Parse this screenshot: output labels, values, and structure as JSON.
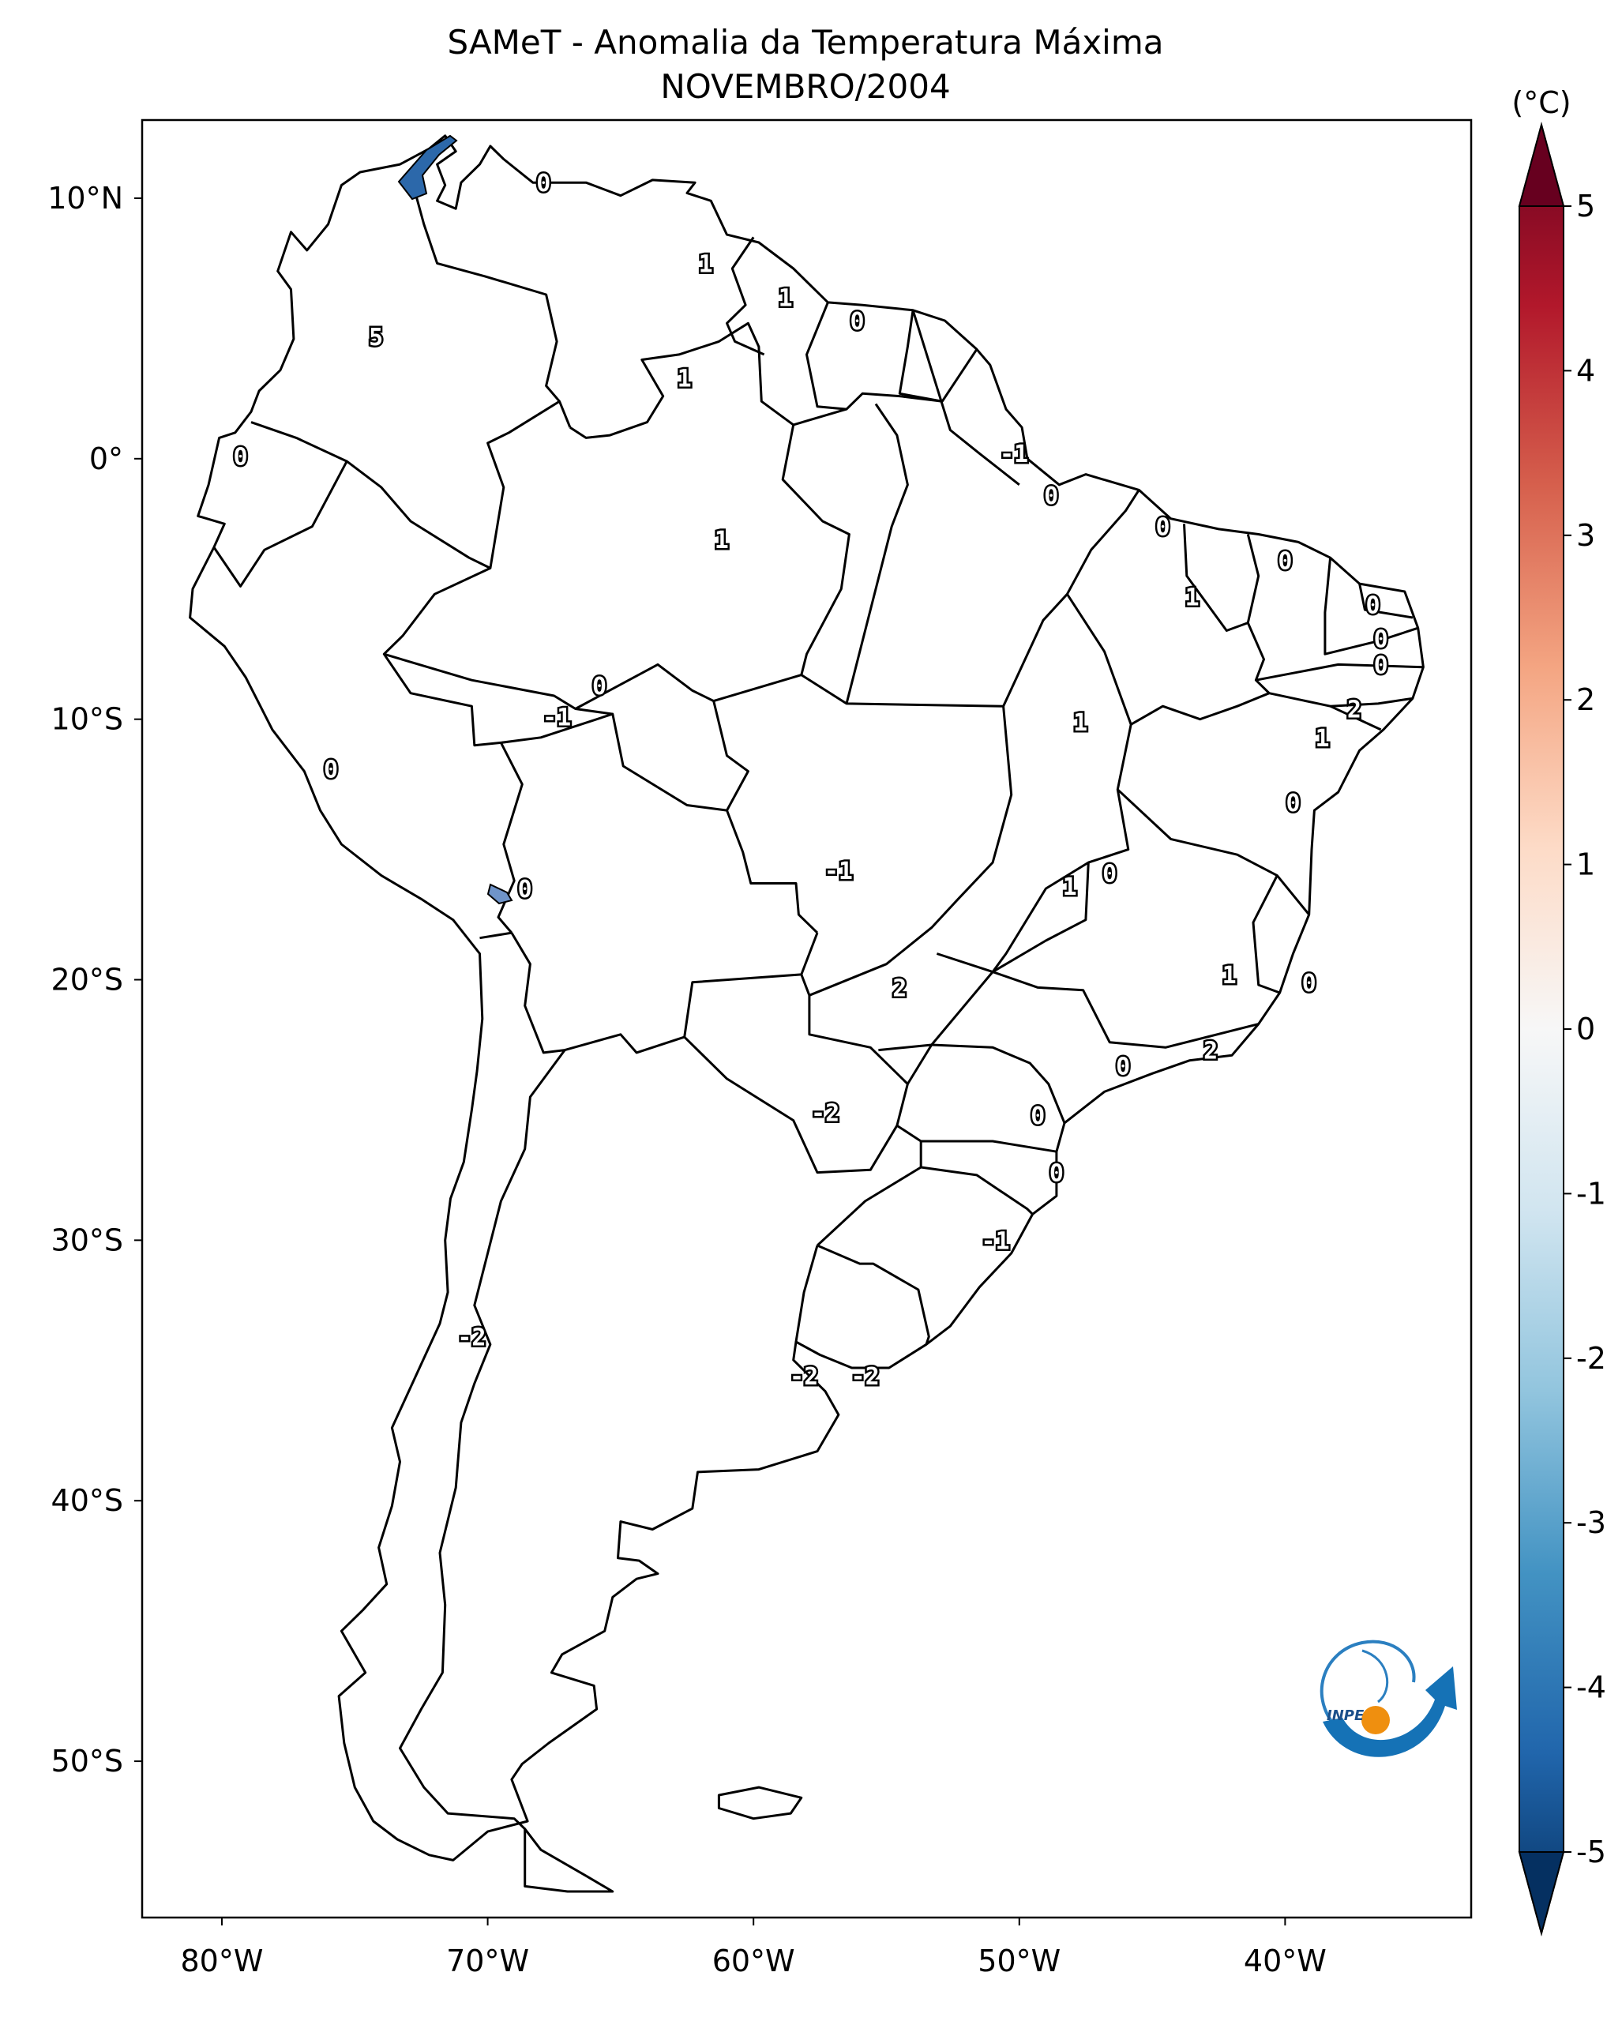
{
  "title": {
    "line1": "SAMeT - Anomalia da Temperatura Máxima",
    "line2": "NOVEMBRO/2004"
  },
  "axes": {
    "lon_ticks": [
      "80°W",
      "70°W",
      "60°W",
      "50°W",
      "40°W"
    ],
    "lat_ticks": [
      "10°N",
      "0°",
      "10°S",
      "20°S",
      "30°S",
      "40°S",
      "50°S"
    ],
    "lon_range": [
      -83,
      -33
    ],
    "lat_range": [
      -56,
      13
    ]
  },
  "colorbar": {
    "unit": "(°C)",
    "ticks": [
      "5",
      "4",
      "3",
      "2",
      "1",
      "0",
      "-1",
      "-2",
      "-3",
      "-4",
      "-5"
    ],
    "range": [
      -5,
      5
    ],
    "colormap": "RdBu_r",
    "colors": {
      "max": "#67001f",
      "hot": "#d6604d",
      "warm": "#f4a582",
      "neutral": "#f7f7f7",
      "cool": "#92c5de",
      "cold": "#2166ac",
      "min": "#053061"
    }
  },
  "contour_labels": [
    {
      "text": "0",
      "lon": -67.9,
      "lat": 10.6
    },
    {
      "text": "5",
      "lon": -74.2,
      "lat": 4.7
    },
    {
      "text": "1",
      "lon": -61.8,
      "lat": 7.5
    },
    {
      "text": "1",
      "lon": -58.8,
      "lat": 6.2
    },
    {
      "text": "0",
      "lon": -56.1,
      "lat": 5.3
    },
    {
      "text": "1",
      "lon": -62.6,
      "lat": 3.1
    },
    {
      "text": "-1",
      "lon": -50.2,
      "lat": 0.2
    },
    {
      "text": "0",
      "lon": -48.8,
      "lat": -1.4
    },
    {
      "text": "0",
      "lon": -44.6,
      "lat": -2.6
    },
    {
      "text": "0",
      "lon": -40.0,
      "lat": -3.9
    },
    {
      "text": "0",
      "lon": -79.3,
      "lat": 0.1
    },
    {
      "text": "1",
      "lon": -61.2,
      "lat": -3.1
    },
    {
      "text": "1",
      "lon": -43.5,
      "lat": -5.3
    },
    {
      "text": "0",
      "lon": -36.7,
      "lat": -5.6
    },
    {
      "text": "0",
      "lon": -36.4,
      "lat": -6.9
    },
    {
      "text": "0",
      "lon": -36.4,
      "lat": -7.9
    },
    {
      "text": "2",
      "lon": -37.4,
      "lat": -9.6
    },
    {
      "text": "1",
      "lon": -38.6,
      "lat": -10.7
    },
    {
      "text": "0",
      "lon": -65.8,
      "lat": -8.7
    },
    {
      "text": "-1",
      "lon": -67.4,
      "lat": -9.9
    },
    {
      "text": "1",
      "lon": -47.7,
      "lat": -10.1
    },
    {
      "text": "0",
      "lon": -75.9,
      "lat": -11.9
    },
    {
      "text": "0",
      "lon": -39.7,
      "lat": -13.2
    },
    {
      "text": "-1",
      "lon": -56.8,
      "lat": -15.8
    },
    {
      "text": "0",
      "lon": -46.6,
      "lat": -15.9
    },
    {
      "text": "1",
      "lon": -48.1,
      "lat": -16.4
    },
    {
      "text": "0",
      "lon": -68.6,
      "lat": -16.5
    },
    {
      "text": "1",
      "lon": -42.1,
      "lat": -19.8
    },
    {
      "text": "0",
      "lon": -39.1,
      "lat": -20.1
    },
    {
      "text": "2",
      "lon": -54.5,
      "lat": -20.3
    },
    {
      "text": "2",
      "lon": -42.8,
      "lat": -22.7
    },
    {
      "text": "0",
      "lon": -46.1,
      "lat": -23.3
    },
    {
      "text": "-2",
      "lon": -57.3,
      "lat": -25.1
    },
    {
      "text": "0",
      "lon": -49.3,
      "lat": -25.2
    },
    {
      "text": "0",
      "lon": -48.6,
      "lat": -27.4
    },
    {
      "text": "-1",
      "lon": -50.9,
      "lat": -30.0
    },
    {
      "text": "-2",
      "lon": -70.6,
      "lat": -33.7
    },
    {
      "text": "-2",
      "lon": -58.1,
      "lat": -35.2
    },
    {
      "text": "-2",
      "lon": -55.8,
      "lat": -35.2
    }
  ],
  "logo": {
    "name": "INPE"
  }
}
